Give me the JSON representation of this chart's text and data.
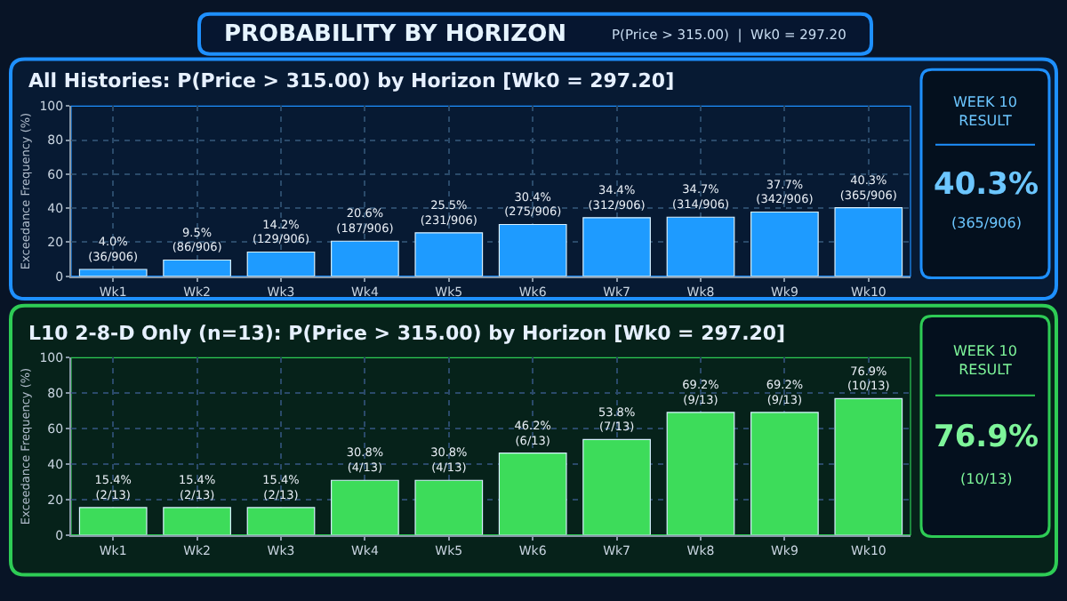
{
  "chart_data": [
    {
      "type": "other",
      "title": "PROBABILITY BY HORIZON",
      "subtitle": "P(Price > 315.00)  |  Wk0 = 297.20"
    },
    {
      "type": "bar",
      "title": "All Histories: P(Price > 315.00) by Horizon [Wk0 = 297.20]",
      "ylabel": "Exceedance Frequency (%)",
      "categories": [
        "Wk1",
        "Wk2",
        "Wk3",
        "Wk4",
        "Wk5",
        "Wk6",
        "Wk7",
        "Wk8",
        "Wk9",
        "Wk10"
      ],
      "values": [
        4.0,
        9.5,
        14.2,
        20.6,
        25.5,
        30.4,
        34.4,
        34.7,
        37.7,
        40.3
      ],
      "value_labels": [
        "4.0%\n(36/906)",
        "9.5%\n(86/906)",
        "14.2%\n(129/906)",
        "20.6%\n(187/906)",
        "25.5%\n(231/906)",
        "30.4%\n(275/906)",
        "34.4%\n(312/906)",
        "34.7%\n(314/906)",
        "37.7%\n(342/906)",
        "40.3%\n(365/906)"
      ],
      "color": "#1e9bff",
      "ylim": [
        0,
        100
      ],
      "yticks": [
        0,
        20,
        40,
        60,
        80,
        100
      ],
      "grid": true
    },
    {
      "type": "other",
      "title": "WEEK 10\nRESULT",
      "annotations": [
        "40.3%",
        "(365/906)"
      ]
    },
    {
      "type": "bar",
      "title": "L10 2-8-D Only (n=13): P(Price > 315.00) by Horizon [Wk0 = 297.20]",
      "ylabel": "Exceedance Frequency (%)",
      "categories": [
        "Wk1",
        "Wk2",
        "Wk3",
        "Wk4",
        "Wk5",
        "Wk6",
        "Wk7",
        "Wk8",
        "Wk9",
        "Wk10"
      ],
      "values": [
        15.4,
        15.4,
        15.4,
        30.8,
        30.8,
        46.2,
        53.8,
        69.2,
        69.2,
        76.9
      ],
      "value_labels": [
        "15.4%\n(2/13)",
        "15.4%\n(2/13)",
        "15.4%\n(2/13)",
        "30.8%\n(4/13)",
        "30.8%\n(4/13)",
        "46.2%\n(6/13)",
        "53.8%\n(7/13)",
        "69.2%\n(9/13)",
        "69.2%\n(9/13)",
        "76.9%\n(10/13)"
      ],
      "color": "#3ddc5a",
      "ylim": [
        0,
        100
      ],
      "yticks": [
        0,
        20,
        40,
        60,
        80,
        100
      ],
      "grid": true
    },
    {
      "type": "other",
      "title": "WEEK 10\nRESULT",
      "annotations": [
        "76.9%",
        "(10/13)"
      ]
    }
  ]
}
